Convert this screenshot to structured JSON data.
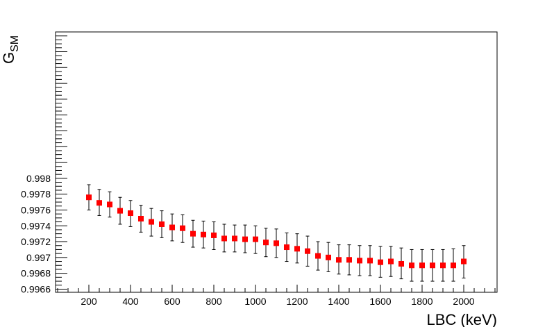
{
  "chart_data": {
    "type": "scatter",
    "title": "",
    "xlabel": "LBC (keV)",
    "ylabel": {
      "main": "G",
      "sub": "SM"
    },
    "xlim": [
      40,
      2160
    ],
    "ylim": [
      0.99656,
      0.99985
    ],
    "x_ticks": [
      200,
      400,
      600,
      800,
      1000,
      1200,
      1400,
      1600,
      1800,
      2000
    ],
    "x_tick_labels": [
      "200",
      "400",
      "600",
      "800",
      "1000",
      "1200",
      "1400",
      "1600",
      "1800",
      "2000"
    ],
    "y_ticks": [
      0.9966,
      0.9968,
      0.997,
      0.9972,
      0.9974,
      0.9976,
      0.9978,
      0.998
    ],
    "y_tick_labels": [
      "0.9966",
      "0.9968",
      "0.997",
      "0.9972",
      "0.9974",
      "0.9976",
      "0.9978",
      "0.998"
    ],
    "grid": false,
    "legend": "none",
    "marker_color": "#ff0000",
    "series": [
      {
        "x": [
          200,
          250,
          300,
          350,
          400,
          450,
          500,
          550,
          600,
          650,
          700,
          750,
          800,
          850,
          900,
          950,
          1000,
          1050,
          1100,
          1150,
          1200,
          1250,
          1300,
          1350,
          1400,
          1450,
          1500,
          1550,
          1600,
          1650,
          1700,
          1750,
          1800,
          1850,
          1900,
          1950,
          2000
        ],
        "y": [
          0.99776,
          0.99769,
          0.99767,
          0.99759,
          0.99756,
          0.99749,
          0.99745,
          0.99742,
          0.99738,
          0.99737,
          0.9973,
          0.99729,
          0.99728,
          0.99724,
          0.99724,
          0.99723,
          0.99723,
          0.99719,
          0.99718,
          0.99713,
          0.99711,
          0.99708,
          0.99702,
          0.997,
          0.99697,
          0.99697,
          0.99696,
          0.99696,
          0.99694,
          0.99695,
          0.99692,
          0.9969,
          0.9969,
          0.9969,
          0.9969,
          0.9969,
          0.99695
        ],
        "y_err_low": [
          0.9976,
          0.99753,
          0.99751,
          0.99742,
          0.99739,
          0.99732,
          0.99727,
          0.99725,
          0.99721,
          0.99719,
          0.99713,
          0.99712,
          0.9971,
          0.99707,
          0.99707,
          0.99706,
          0.99705,
          0.99701,
          0.997,
          0.99695,
          0.99693,
          0.99689,
          0.99684,
          0.99682,
          0.99679,
          0.99678,
          0.99677,
          0.99677,
          0.99675,
          0.99676,
          0.99673,
          0.9967,
          0.9967,
          0.9967,
          0.9967,
          0.9967,
          0.99674
        ],
        "y_err_high": [
          0.99792,
          0.99786,
          0.99783,
          0.99776,
          0.99772,
          0.99766,
          0.99762,
          0.99759,
          0.99755,
          0.99754,
          0.99747,
          0.99746,
          0.99745,
          0.99742,
          0.99741,
          0.99741,
          0.9974,
          0.99737,
          0.99736,
          0.99731,
          0.9973,
          0.99727,
          0.9972,
          0.99719,
          0.99716,
          0.99716,
          0.99715,
          0.99715,
          0.99714,
          0.99714,
          0.99712,
          0.9971,
          0.9971,
          0.9971,
          0.9971,
          0.99711,
          0.99715
        ]
      }
    ]
  }
}
